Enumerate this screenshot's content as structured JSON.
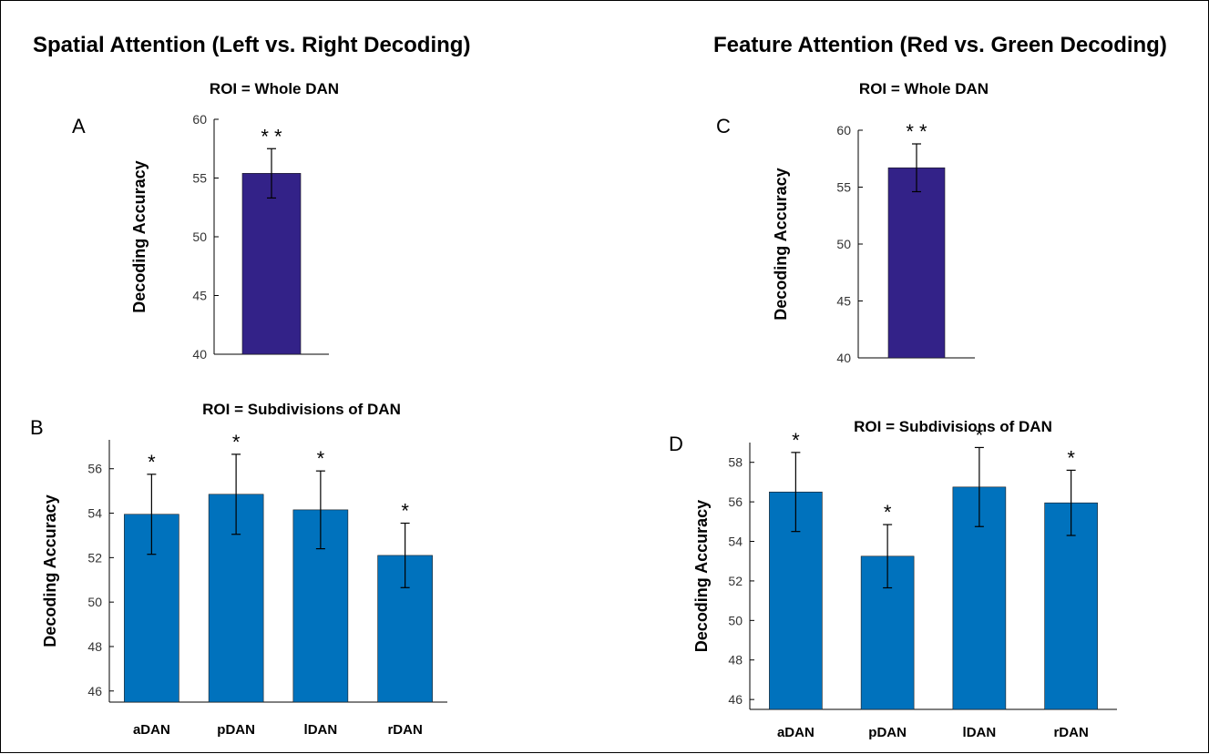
{
  "headings": {
    "left": "Spatial Attention (Left vs. Right Decoding)",
    "right": "Feature Attention (Red vs. Green Decoding)"
  },
  "chart_data": [
    {
      "panel": "A",
      "type": "bar",
      "title": "ROI = Whole DAN",
      "ylabel": "Decoding Accuracy",
      "xlabel": "",
      "ylim": [
        40,
        60
      ],
      "yticks": [
        40,
        45,
        50,
        55,
        60
      ],
      "categories": [
        ""
      ],
      "values": [
        55.4
      ],
      "errors": [
        2.1
      ],
      "significance": [
        "**"
      ],
      "bar_color": "#332288"
    },
    {
      "panel": "B",
      "type": "bar",
      "title": "ROI = Subdivisions of DAN",
      "ylabel": "Decoding Accuracy",
      "xlabel": "",
      "ylim": [
        45.5,
        57.3
      ],
      "yticks": [
        46,
        48,
        50,
        52,
        54,
        56
      ],
      "categories": [
        "aDAN",
        "pDAN",
        "lDAN",
        "rDAN"
      ],
      "values": [
        53.95,
        54.85,
        54.15,
        52.1
      ],
      "errors": [
        1.8,
        1.8,
        1.75,
        1.45
      ],
      "significance": [
        "*",
        "*",
        "*",
        "*"
      ],
      "bar_color": "#0072BD"
    },
    {
      "panel": "C",
      "type": "bar",
      "title": "ROI = Whole DAN",
      "ylabel": "Decoding Accuracy",
      "xlabel": "",
      "ylim": [
        40,
        60
      ],
      "yticks": [
        40,
        45,
        50,
        55,
        60
      ],
      "categories": [
        ""
      ],
      "values": [
        56.7
      ],
      "errors": [
        2.1
      ],
      "significance": [
        "**"
      ],
      "bar_color": "#332288"
    },
    {
      "panel": "D",
      "type": "bar",
      "title": "ROI = Subdivisions of DAN",
      "ylabel": "Decoding Accuracy",
      "xlabel": "",
      "ylim": [
        45.5,
        59
      ],
      "yticks": [
        46,
        48,
        50,
        52,
        54,
        56,
        58
      ],
      "categories": [
        "aDAN",
        "pDAN",
        "lDAN",
        "rDAN"
      ],
      "values": [
        56.5,
        53.25,
        56.75,
        55.95
      ],
      "errors": [
        2.0,
        1.6,
        2.0,
        1.65
      ],
      "significance": [
        "*",
        "*",
        "*",
        "*"
      ],
      "bar_color": "#0072BD"
    }
  ]
}
